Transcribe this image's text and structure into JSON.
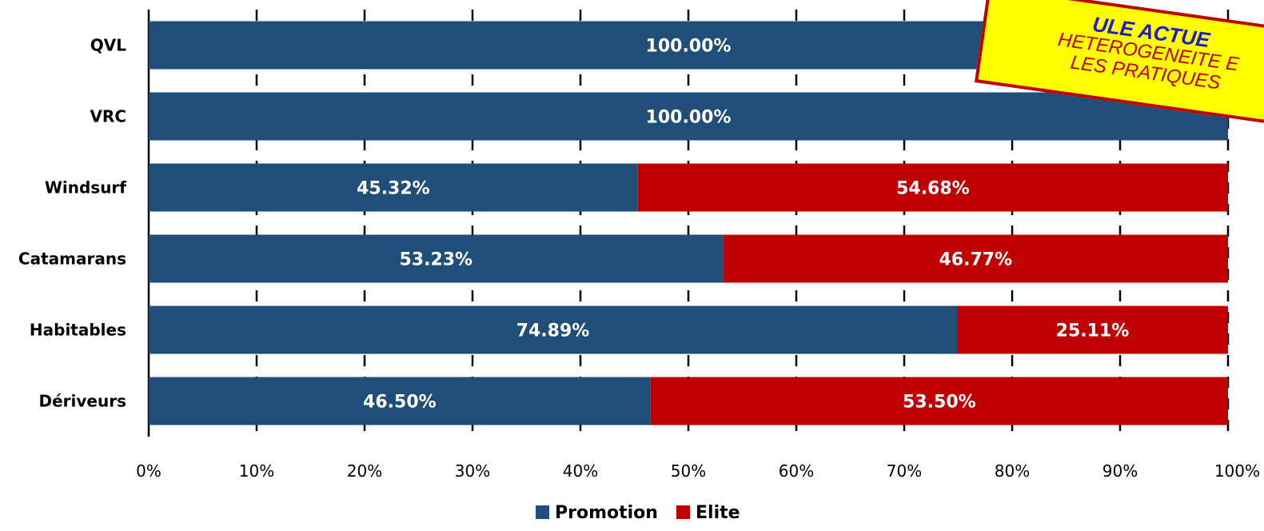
{
  "chart_data": {
    "type": "bar",
    "orientation": "horizontal",
    "stacked": true,
    "categories": [
      "QVL",
      "VRC",
      "Windsurf",
      "Catamarans",
      "Habitables",
      "Dériveurs"
    ],
    "series": [
      {
        "name": "Promotion",
        "color": "#1f4e79",
        "values": [
          100.0,
          100.0,
          45.32,
          53.23,
          74.89,
          46.5
        ],
        "labels": [
          "100.00%",
          "100.00%",
          "45.32%",
          "53.23%",
          "74.89%",
          "46.50%"
        ]
      },
      {
        "name": "Elite",
        "color": "#c00000",
        "values": [
          0.0,
          0.0,
          54.68,
          46.77,
          25.11,
          53.5
        ],
        "labels": [
          "",
          "",
          "54.68%",
          "46.77%",
          "25.11%",
          "53.50%"
        ]
      }
    ],
    "xlim": [
      0,
      100
    ],
    "x_ticks": [
      "0%",
      "10%",
      "20%",
      "30%",
      "40%",
      "50%",
      "60%",
      "70%",
      "80%",
      "90%",
      "100%"
    ],
    "grid": "vertical-dashed",
    "legend": "bottom-center"
  },
  "annotation": {
    "line1": "ULE ACTUE",
    "line2": "HETEROGENEITE E",
    "line3": "LES PRATIQUES"
  }
}
